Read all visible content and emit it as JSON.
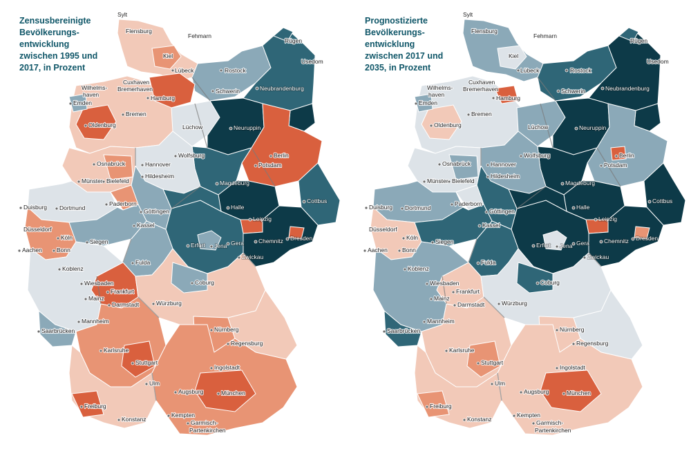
{
  "maps": [
    {
      "id": "left",
      "title_lines": [
        "Zensusbereinigte",
        "Bevölkerungs-",
        "entwicklung",
        "zwischen 1995 und",
        "2017, in Prozent"
      ],
      "palette": {
        "strong_decline": "#0d3a48",
        "decline": "#2f6677",
        "slight_decline": "#8ba9b8",
        "stable": "#dde3e8",
        "slight_growth": "#f2c9b8",
        "growth": "#e89474",
        "strong_growth": "#d9603e"
      }
    },
    {
      "id": "right",
      "title_lines": [
        "Prognostizierte",
        "Bevölkerungs-",
        "entwicklung",
        "zwischen 2017 und",
        "2035, in Prozent"
      ],
      "palette": {
        "strong_decline": "#0d3a48",
        "decline": "#2f6677",
        "slight_decline": "#8ba9b8",
        "stable": "#dde3e8",
        "slight_growth": "#f2c9b8",
        "growth": "#e89474",
        "strong_growth": "#d9603e"
      }
    }
  ],
  "cities_left": [
    {
      "name": "Sylt"
    },
    {
      "name": "Flensburg"
    },
    {
      "name": "Fehmarn"
    },
    {
      "name": "Rügen"
    },
    {
      "name": "Kiel"
    },
    {
      "name": "Usedom"
    },
    {
      "name": "Lübeck"
    },
    {
      "name": "Rostock"
    },
    {
      "name": "Wilhelms-"
    },
    {
      "name": "haven"
    },
    {
      "name": "Cuxhaven"
    },
    {
      "name": "Bremerhaven"
    },
    {
      "name": "Hamburg"
    },
    {
      "name": "Schwerin"
    },
    {
      "name": "Neubrandenburg"
    },
    {
      "name": "Emden"
    },
    {
      "name": "Bremen"
    },
    {
      "name": "Oldenburg"
    },
    {
      "name": "Lüchow"
    },
    {
      "name": "Neuruppin"
    },
    {
      "name": "Wolfsburg"
    },
    {
      "name": "Berlin"
    },
    {
      "name": "Osnabrück"
    },
    {
      "name": "Hannover"
    },
    {
      "name": "Potsdam"
    },
    {
      "name": "Hildesheim"
    },
    {
      "name": "Münster"
    },
    {
      "name": "Bielefeld"
    },
    {
      "name": "Magdeburg"
    },
    {
      "name": "Cottbus"
    },
    {
      "name": "Duisburg"
    },
    {
      "name": "Dortmund"
    },
    {
      "name": "Paderborn"
    },
    {
      "name": "Göttingen"
    },
    {
      "name": "Halle"
    },
    {
      "name": "Düsseldorf"
    },
    {
      "name": "Leipzig"
    },
    {
      "name": "Kassel"
    },
    {
      "name": "Köln"
    },
    {
      "name": "Aachen"
    },
    {
      "name": "Bonn"
    },
    {
      "name": "Siegen"
    },
    {
      "name": "Gera"
    },
    {
      "name": "Chemnitz"
    },
    {
      "name": "Dresden"
    },
    {
      "name": "Erfurt"
    },
    {
      "name": "Jena"
    },
    {
      "name": "Zwickau"
    },
    {
      "name": "Fulda"
    },
    {
      "name": "Koblenz"
    },
    {
      "name": "Coburg"
    },
    {
      "name": "Wiesbaden"
    },
    {
      "name": "Frankfurt"
    },
    {
      "name": "Mainz"
    },
    {
      "name": "Darmstadt"
    },
    {
      "name": "Würzburg"
    },
    {
      "name": "Mannheim"
    },
    {
      "name": "Saarbrücken"
    },
    {
      "name": "Nürnberg"
    },
    {
      "name": "Regensburg"
    },
    {
      "name": "Karlsruhe"
    },
    {
      "name": "Stuttgart"
    },
    {
      "name": "Ingolstadt"
    },
    {
      "name": "Ulm"
    },
    {
      "name": "Augsburg"
    },
    {
      "name": "München"
    },
    {
      "name": "Freiburg"
    },
    {
      "name": "Konstanz"
    },
    {
      "name": "Kempten"
    },
    {
      "name": "Garmisch-"
    },
    {
      "name": "Partenkirchen"
    }
  ],
  "cities_right": [
    {
      "name": "Sylt"
    },
    {
      "name": "Flensburg"
    },
    {
      "name": "Fehmarn"
    },
    {
      "name": "Rügen"
    },
    {
      "name": "Kiel"
    },
    {
      "name": "Usedom"
    },
    {
      "name": "Lübeck"
    },
    {
      "name": "Rostock"
    },
    {
      "name": "Wilhelms-"
    },
    {
      "name": "haven"
    },
    {
      "name": "Cuxhaven"
    },
    {
      "name": "Bremerhaven"
    },
    {
      "name": "Hamburg"
    },
    {
      "name": "Schwerin"
    },
    {
      "name": "Neubrandenburg"
    },
    {
      "name": "Emden"
    },
    {
      "name": "Bremen"
    },
    {
      "name": "Oldenburg"
    },
    {
      "name": "Lüchow"
    },
    {
      "name": "Neuruppin"
    },
    {
      "name": "Wolfsburg"
    },
    {
      "name": "Berlin"
    },
    {
      "name": "Osnabrück"
    },
    {
      "name": "Hannover"
    },
    {
      "name": "Potsdam"
    },
    {
      "name": "Hildesheim"
    },
    {
      "name": "Münster"
    },
    {
      "name": "Bielefeld"
    },
    {
      "name": "Magdeburg"
    },
    {
      "name": "Cottbus"
    },
    {
      "name": "Duisburg"
    },
    {
      "name": "Dortmund"
    },
    {
      "name": "Paderborn"
    },
    {
      "name": "Göttingen"
    },
    {
      "name": "Halle"
    },
    {
      "name": "Düsseldorf"
    },
    {
      "name": "Leipzig"
    },
    {
      "name": "Kassel"
    },
    {
      "name": "Köln"
    },
    {
      "name": "Aachen"
    },
    {
      "name": "Bonn"
    },
    {
      "name": "Siegen"
    },
    {
      "name": "Gera"
    },
    {
      "name": "Chemnitz"
    },
    {
      "name": "Dresden"
    },
    {
      "name": "Erfurt"
    },
    {
      "name": "Jena"
    },
    {
      "name": "Zwickau"
    },
    {
      "name": "Fulda"
    },
    {
      "name": "Koblenz"
    },
    {
      "name": "Coburg"
    },
    {
      "name": "Wiesbaden"
    },
    {
      "name": "Frankfurt"
    },
    {
      "name": "Mainz"
    },
    {
      "name": "Darmstadt"
    },
    {
      "name": "Würzburg"
    },
    {
      "name": "Mannheim"
    },
    {
      "name": "Saarbrücken"
    },
    {
      "name": "Nürnberg"
    },
    {
      "name": "Regensburg"
    },
    {
      "name": "Karlsruhe"
    },
    {
      "name": "Stuttgart"
    },
    {
      "name": "Ingolstadt"
    },
    {
      "name": "Ulm"
    },
    {
      "name": "Augsburg"
    },
    {
      "name": "München"
    },
    {
      "name": "Freiburg"
    },
    {
      "name": "Konstanz"
    },
    {
      "name": "Kempten"
    },
    {
      "name": "Garmisch-"
    },
    {
      "name": "Partenkirchen"
    }
  ]
}
